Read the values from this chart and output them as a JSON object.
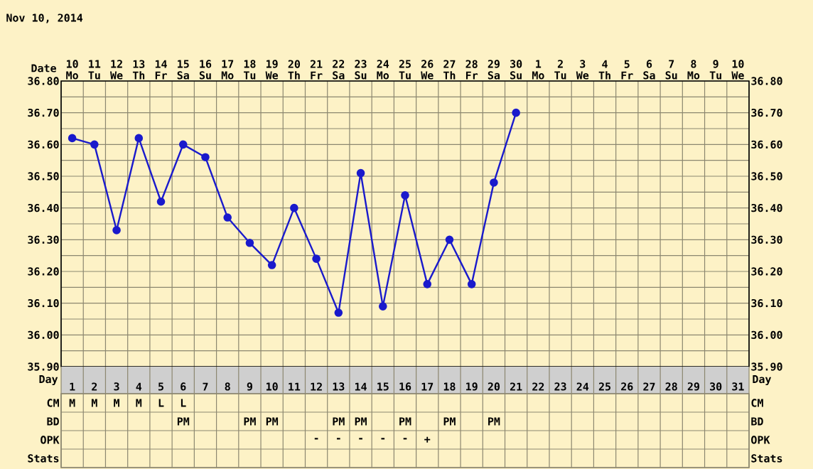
{
  "chart_data": [
    {
      "type": "line",
      "title": "Nov 10, 2014",
      "xlabel": "Date",
      "categories": [
        "10 Mo",
        "11 Tu",
        "12 We",
        "13 Th",
        "14 Fr",
        "15 Sa",
        "16 Su",
        "17 Mo",
        "18 Tu",
        "19 We",
        "20 Th",
        "21 Fr",
        "22 Sa",
        "23 Su",
        "24 Mo",
        "25 Tu",
        "26 We",
        "27 Th",
        "28 Fr",
        "29 Sa",
        "30 Su",
        "1 Mo",
        "2 Tu",
        "3 We",
        "4 Th",
        "5 Fr",
        "6 Sa",
        "7 Su",
        "8 Mo",
        "9 Tu",
        "10 We"
      ],
      "values": [
        36.62,
        36.6,
        36.33,
        36.62,
        36.42,
        36.6,
        36.56,
        36.37,
        36.29,
        36.22,
        36.4,
        36.24,
        36.07,
        36.51,
        36.09,
        36.44,
        36.16,
        36.3,
        36.16,
        36.48,
        36.7,
        null,
        null,
        null,
        null,
        null,
        null,
        null,
        null,
        null,
        null
      ],
      "color": "#1a1acc",
      "marker": "circle",
      "grid": true,
      "ylim": [
        35.9,
        36.8
      ],
      "yticks": [
        {
          "value": 35.9,
          "label": "35.90"
        },
        {
          "value": 36.0,
          "label": "36.00"
        },
        {
          "value": 36.1,
          "label": "36.10"
        },
        {
          "value": 36.2,
          "label": "36.20"
        },
        {
          "value": 36.3,
          "label": "36.30"
        },
        {
          "value": 36.4,
          "label": "36.40"
        },
        {
          "value": 36.5,
          "label": "36.50"
        },
        {
          "value": 36.6,
          "label": "36.60"
        },
        {
          "value": 36.7,
          "label": "36.70"
        },
        {
          "value": 36.8,
          "label": "36.80"
        }
      ],
      "y2lim": [
        35.9,
        36.8
      ],
      "y2ticks": [
        {
          "value": 35.9,
          "label": "35.90"
        },
        {
          "value": 36.0,
          "label": "36.00"
        },
        {
          "value": 36.1,
          "label": "36.10"
        },
        {
          "value": 36.2,
          "label": "36.20"
        },
        {
          "value": 36.3,
          "label": "36.30"
        },
        {
          "value": 36.4,
          "label": "36.40"
        },
        {
          "value": 36.5,
          "label": "36.50"
        },
        {
          "value": 36.6,
          "label": "36.60"
        },
        {
          "value": 36.7,
          "label": "36.70"
        },
        {
          "value": 36.8,
          "label": "36.80"
        }
      ]
    },
    {
      "type": "heatmap",
      "xlabel": "Day",
      "categories": [
        "1",
        "2",
        "3",
        "4",
        "5",
        "6",
        "7",
        "8",
        "9",
        "10",
        "11",
        "12",
        "13",
        "14",
        "15",
        "16",
        "17",
        "18",
        "19",
        "20",
        "21",
        "22",
        "23",
        "24",
        "25",
        "26",
        "27",
        "28",
        "29",
        "30",
        "31"
      ],
      "y_categories": [
        "CM",
        "BD",
        "OPK",
        "Stats"
      ],
      "y2_categories": [
        "CM",
        "BD",
        "OPK",
        "Stats"
      ],
      "cells": [
        [
          null,
          null,
          null,
          null,
          null,
          null,
          null,
          null,
          null,
          null,
          null,
          null,
          null,
          null,
          null,
          null,
          null,
          null,
          null,
          null,
          null,
          null,
          null,
          null,
          null,
          null,
          null,
          null,
          null,
          null,
          null
        ],
        [
          null,
          null,
          null,
          null,
          null,
          null,
          null,
          null,
          null,
          null,
          null,
          null,
          null,
          null,
          null,
          null,
          null,
          null,
          null,
          null,
          null,
          null,
          null,
          null,
          null,
          null,
          null,
          null,
          null,
          null,
          null
        ],
        [
          null,
          null,
          null,
          null,
          null,
          null,
          null,
          null,
          null,
          null,
          null,
          null,
          null,
          null,
          null,
          null,
          null,
          null,
          null,
          null,
          null,
          null,
          null,
          null,
          null,
          null,
          null,
          null,
          null,
          null,
          null
        ],
        [
          null,
          null,
          null,
          null,
          null,
          null,
          null,
          null,
          null,
          null,
          null,
          null,
          null,
          null,
          null,
          null,
          null,
          null,
          null,
          null,
          null,
          null,
          null,
          null,
          null,
          null,
          null,
          null,
          null,
          null,
          null
        ]
      ],
      "cell_labels": [
        [
          "M",
          "M",
          "M",
          "M",
          "L",
          "L",
          null,
          null,
          null,
          null,
          null,
          null,
          null,
          null,
          null,
          null,
          null,
          null,
          null,
          null,
          null,
          null,
          null,
          null,
          null,
          null,
          null,
          null,
          null,
          null,
          null
        ],
        [
          null,
          null,
          null,
          null,
          null,
          "PM",
          null,
          null,
          "PM",
          "PM",
          null,
          null,
          "PM",
          "PM",
          null,
          "PM",
          null,
          "PM",
          null,
          "PM",
          null,
          null,
          null,
          null,
          null,
          null,
          null,
          null,
          null,
          null,
          null
        ],
        [
          null,
          null,
          null,
          null,
          null,
          null,
          null,
          null,
          null,
          null,
          null,
          "-",
          "-",
          "-",
          "-",
          "-",
          "+",
          null,
          null,
          null,
          null,
          null,
          null,
          null,
          null,
          null,
          null,
          null,
          null,
          null,
          null
        ],
        [
          null,
          null,
          null,
          null,
          null,
          null,
          null,
          null,
          null,
          null,
          null,
          null,
          null,
          null,
          null,
          null,
          null,
          null,
          null,
          null,
          null,
          null,
          null,
          null,
          null,
          null,
          null,
          null,
          null,
          null,
          null
        ]
      ]
    }
  ]
}
